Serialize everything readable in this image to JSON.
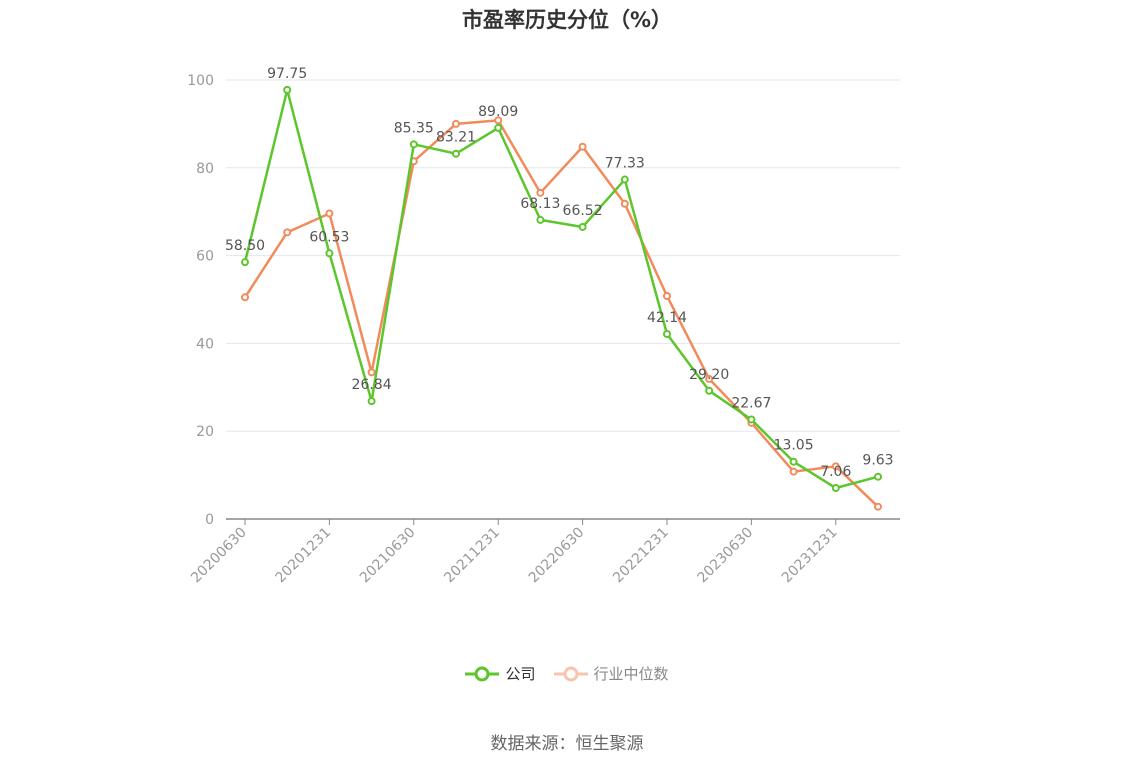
{
  "chart_data": {
    "type": "line",
    "title": "市盈率历史分位（%）",
    "x": [
      "20200630",
      "20200930",
      "20201231",
      "20210331",
      "20210630",
      "20210930",
      "20211231",
      "20220331",
      "20220630",
      "20220930",
      "20221231",
      "20230331",
      "20230630",
      "20230930",
      "20231231",
      "20240331"
    ],
    "x_tick_labels": [
      "20200630",
      "20201231",
      "20210630",
      "20211231",
      "20220630",
      "20221231",
      "20230630",
      "20231231"
    ],
    "y_ticks": [
      "0",
      "20",
      "40",
      "60",
      "80",
      "100"
    ],
    "ylim": [
      0,
      100
    ],
    "grid": true,
    "legend_position": "bottom",
    "series": [
      {
        "name": "公司",
        "color": "#5cc62c",
        "values": [
          58.5,
          97.75,
          60.53,
          26.84,
          85.35,
          83.21,
          89.09,
          68.13,
          66.52,
          77.33,
          42.14,
          29.2,
          22.67,
          13.05,
          7.06,
          9.63
        ],
        "labels": [
          "58.50",
          "97.75",
          "60.53",
          "26.84",
          "85.35",
          "83.21",
          "89.09",
          "68.13",
          "66.52",
          "77.33",
          "42.14",
          "29.20",
          "22.67",
          "13.05",
          "7.06",
          "9.63"
        ]
      },
      {
        "name": "行业中位数",
        "color": "#f28b5c",
        "values": [
          50.5,
          65.3,
          69.6,
          33.4,
          81.5,
          90.0,
          90.8,
          74.3,
          84.8,
          71.8,
          50.8,
          31.9,
          21.9,
          10.8,
          12.0,
          2.8
        ]
      }
    ]
  },
  "legend": {
    "company": "公司",
    "industry": "行业中位数"
  },
  "source": "数据来源：恒生聚源"
}
